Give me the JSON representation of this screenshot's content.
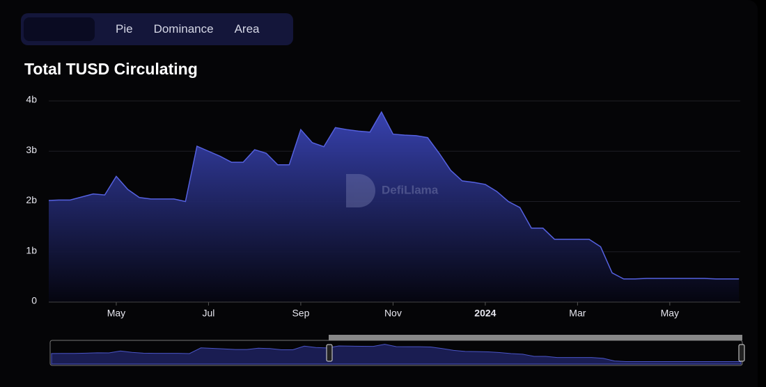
{
  "tabs": [
    "Pie",
    "Dominance",
    "Area"
  ],
  "watermark": "DefiLlama",
  "chart_data": {
    "type": "area",
    "title": "Total TUSD Circulating",
    "color": "#5561e0",
    "categories": [
      null,
      null,
      null,
      null,
      null,
      null,
      "May",
      null,
      null,
      null,
      null,
      null,
      null,
      null,
      "Jul",
      null,
      null,
      null,
      null,
      null,
      null,
      null,
      "Sep",
      null,
      null,
      null,
      null,
      null,
      null,
      null,
      "Nov",
      null,
      null,
      null,
      null,
      null,
      null,
      null,
      "2024",
      null,
      null,
      null,
      null,
      null,
      null,
      null,
      "Mar",
      null,
      null,
      null,
      null,
      null,
      null,
      null,
      "May",
      null,
      null,
      null,
      null,
      null,
      null
    ],
    "values": [
      2.02,
      2.03,
      2.03,
      2.09,
      2.15,
      2.13,
      2.5,
      2.24,
      2.08,
      2.05,
      2.05,
      2.05,
      2.0,
      3.1,
      3.0,
      2.9,
      2.78,
      2.78,
      3.03,
      2.96,
      2.73,
      2.73,
      3.43,
      3.17,
      3.09,
      3.47,
      3.43,
      3.4,
      3.38,
      3.78,
      3.34,
      3.32,
      3.31,
      3.27,
      2.96,
      2.62,
      2.41,
      2.38,
      2.34,
      2.2,
      2.0,
      1.88,
      1.47,
      1.47,
      1.25,
      1.25,
      1.25,
      1.25,
      1.1,
      0.58,
      0.46,
      0.46,
      0.47,
      0.47,
      0.47,
      0.47,
      0.47,
      0.47,
      0.46,
      0.46,
      0.46
    ],
    "ylim": [
      0,
      4
    ],
    "yticks": [
      0,
      {
        "value": 1,
        "label": "1b"
      },
      {
        "value": 2,
        "label": "2b"
      },
      {
        "value": 3,
        "label": "3b"
      },
      {
        "value": 4,
        "label": "4b"
      }
    ],
    "grid": true
  }
}
